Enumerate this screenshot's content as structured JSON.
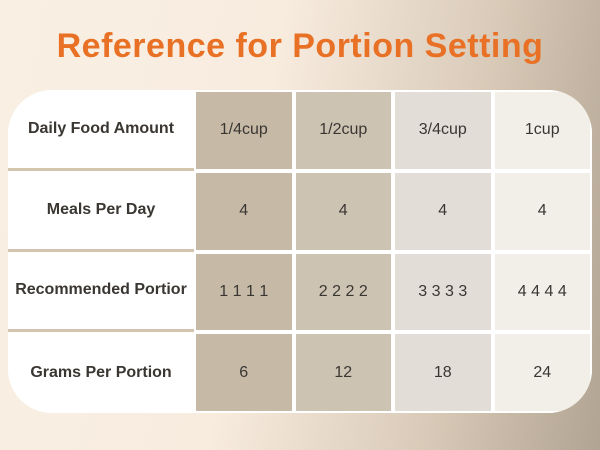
{
  "title": "Reference for Portion Setting",
  "theme": {
    "title_color": "#e87126",
    "background_cream": "#f8ecdf",
    "background_tan": "#b2a492",
    "table_background": "#ffffff",
    "column_colors": [
      "#c6baa7",
      "#cdc3b3",
      "#e2ded7",
      "#f2efe9"
    ],
    "divider_color": "#d2c4ad",
    "text_color": "#3a3632"
  },
  "table": {
    "rows": [
      {
        "label": "Daily Food Amount",
        "values": [
          "1/4cup",
          "1/2cup",
          "3/4cup",
          "1cup"
        ]
      },
      {
        "label": "Meals Per Day",
        "values": [
          "4",
          "4",
          "4",
          "4"
        ]
      },
      {
        "label": "Recommended Portior",
        "values": [
          "1 1 1 1",
          "2 2 2 2",
          "3 3 3 3",
          "4 4 4 4"
        ]
      },
      {
        "label": "Grams Per Portion",
        "values": [
          "6",
          "12",
          "18",
          "24"
        ]
      }
    ]
  }
}
